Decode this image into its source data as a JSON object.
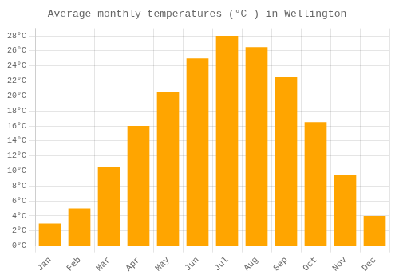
{
  "chart_data": {
    "type": "bar",
    "title": "Average monthly temperatures (°C ) in Wellington",
    "categories": [
      "Jan",
      "Feb",
      "Mar",
      "Apr",
      "May",
      "Jun",
      "Jul",
      "Aug",
      "Sep",
      "Oct",
      "Nov",
      "Dec"
    ],
    "values": [
      3,
      5,
      10.5,
      16,
      20.5,
      25,
      28,
      26.5,
      22.5,
      16.5,
      9.5,
      4
    ],
    "color": "#FFA500",
    "ylim": [
      0,
      29
    ],
    "yticks": [
      {
        "value": 0,
        "label": "0°C"
      },
      {
        "value": 2,
        "label": "2°C"
      },
      {
        "value": 4,
        "label": "4°C"
      },
      {
        "value": 6,
        "label": "6°C"
      },
      {
        "value": 8,
        "label": "8°C"
      },
      {
        "value": 10,
        "label": "10°C"
      },
      {
        "value": 12,
        "label": "12°C"
      },
      {
        "value": 14,
        "label": "14°C"
      },
      {
        "value": 16,
        "label": "16°C"
      },
      {
        "value": 18,
        "label": "18°C"
      },
      {
        "value": 20,
        "label": "20°C"
      },
      {
        "value": 22,
        "label": "22°C"
      },
      {
        "value": 24,
        "label": "24°C"
      },
      {
        "value": 26,
        "label": "26°C"
      },
      {
        "value": 28,
        "label": "28°C"
      }
    ],
    "grid": true
  }
}
